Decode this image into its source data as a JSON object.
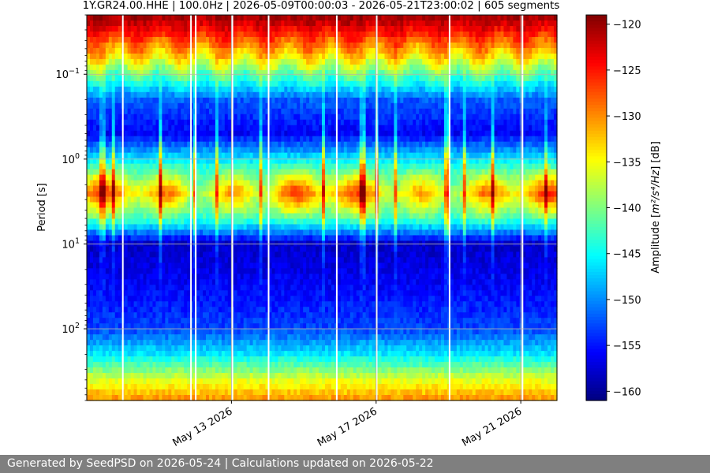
{
  "chart_data": {
    "type": "heatmap",
    "title": "1Y.GR24.00.HHE | 100.0Hz | 2026-05-09T00:00:03 - 2026-05-21T23:00:02 | 605 segments",
    "xlabel": "",
    "ylabel": "Period [s]",
    "x_start": "2026-05-09",
    "x_end": "2026-05-22",
    "x_ticks": [
      "May 13 2026",
      "May 17 2026",
      "May 21 2026"
    ],
    "x_tick_dates": [
      "2026-05-13",
      "2026-05-17",
      "2026-05-21"
    ],
    "y_scale": "log",
    "y_inverted": true,
    "ylim": [
      0.02,
      700
    ],
    "y_ticks": [
      {
        "value": 0.1,
        "base": "10",
        "exp": "−1"
      },
      {
        "value": 1,
        "base": "10",
        "exp": "0"
      },
      {
        "value": 10,
        "base": "10",
        "exp": "1"
      },
      {
        "value": 100,
        "base": "10",
        "exp": "2"
      }
    ],
    "grid": true,
    "colormap": "jet",
    "colorbar": {
      "label_prefix": "Amplitude [",
      "label_units": "m²/s⁴/Hz",
      "label_suffix": "] [dB]",
      "range": [
        -161,
        -119
      ],
      "ticks": [
        "−120",
        "−125",
        "−130",
        "−135",
        "−140",
        "−145",
        "−150",
        "−155",
        "−160"
      ],
      "tick_values": [
        -120,
        -125,
        -130,
        -135,
        -140,
        -145,
        -150,
        -155,
        -160
      ]
    },
    "profile": [
      {
        "period": 0.02,
        "db": -120
      },
      {
        "period": 0.03,
        "db": -124
      },
      {
        "period": 0.06,
        "db": -133
      },
      {
        "period": 0.1,
        "db": -141
      },
      {
        "period": 0.2,
        "db": -152
      },
      {
        "period": 0.5,
        "db": -156
      },
      {
        "period": 1,
        "db": -146
      },
      {
        "period": 2.5,
        "db": -132
      },
      {
        "period": 5,
        "db": -142
      },
      {
        "period": 10,
        "db": -158
      },
      {
        "period": 30,
        "db": -156
      },
      {
        "period": 100,
        "db": -153
      },
      {
        "period": 200,
        "db": -146
      },
      {
        "period": 400,
        "db": -136
      },
      {
        "period": 700,
        "db": -130
      }
    ]
  },
  "footer": {
    "text": "Generated by SeedPSD on 2026-05-24 | Calculations updated on 2026-05-22"
  }
}
